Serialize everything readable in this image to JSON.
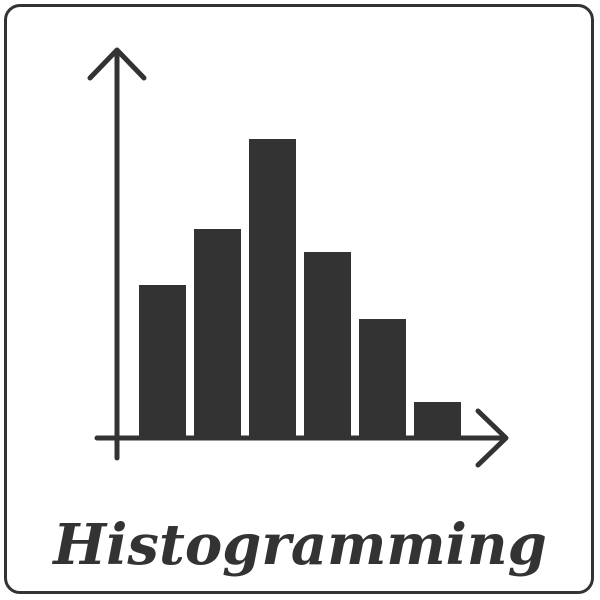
{
  "caption": "Histogramming",
  "colors": {
    "ink": "#333333",
    "background": "#ffffff"
  },
  "chart_data": {
    "type": "bar",
    "title": "",
    "xlabel": "",
    "ylabel": "",
    "categories": [
      "",
      "",
      "",
      "",
      "",
      ""
    ],
    "values": [
      153,
      209,
      299,
      186,
      119,
      36
    ],
    "ylim": [
      0,
      400
    ],
    "grid": false,
    "legend": "none",
    "color": "#333333"
  }
}
